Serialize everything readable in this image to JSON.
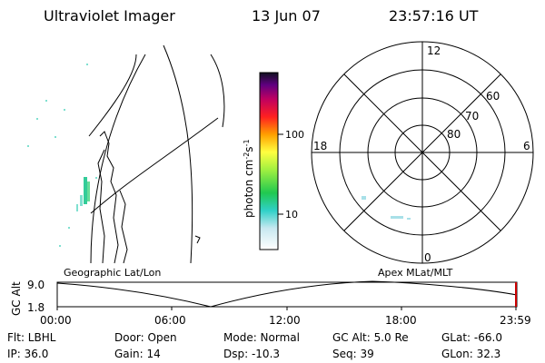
{
  "header": {
    "title": "Ultraviolet Imager",
    "date": "13 Jun 07",
    "time": "23:57:16 UT"
  },
  "colorbar": {
    "unit_label": "photon cm",
    "unit_exp1": "-2",
    "unit_mid": "s",
    "unit_exp2": "-1",
    "tick_100": "100",
    "tick_10": "10"
  },
  "polar": {
    "mlt_12": "12",
    "mlt_18": "18",
    "mlt_6": "6",
    "mlt_0": "0",
    "lat_60": "60",
    "lat_70": "70",
    "lat_80": "80"
  },
  "labels": {
    "geo": "Geographic Lat/Lon",
    "apex": "Apex MLat/MLT"
  },
  "altplot": {
    "ylabel": "GC Alt",
    "ymax": "9.0",
    "ymin": "1.8",
    "xticks": [
      "00:00",
      "06:00",
      "12:00",
      "18:00",
      "23:59"
    ]
  },
  "info": {
    "filter": "Flt: LBHL",
    "door": "Door: Open",
    "mode": "Mode: Normal",
    "gcalt": "GC Alt: 5.0 Re",
    "glat": "GLat: -66.0",
    "ip": "IP: 36.0",
    "gain": "Gain: 14",
    "dsp": "Dsp:  -10.3",
    "seq": "Seq: 39",
    "glon": "GLon:  32.3"
  },
  "colors": {
    "accent_red": "#cc0000"
  }
}
